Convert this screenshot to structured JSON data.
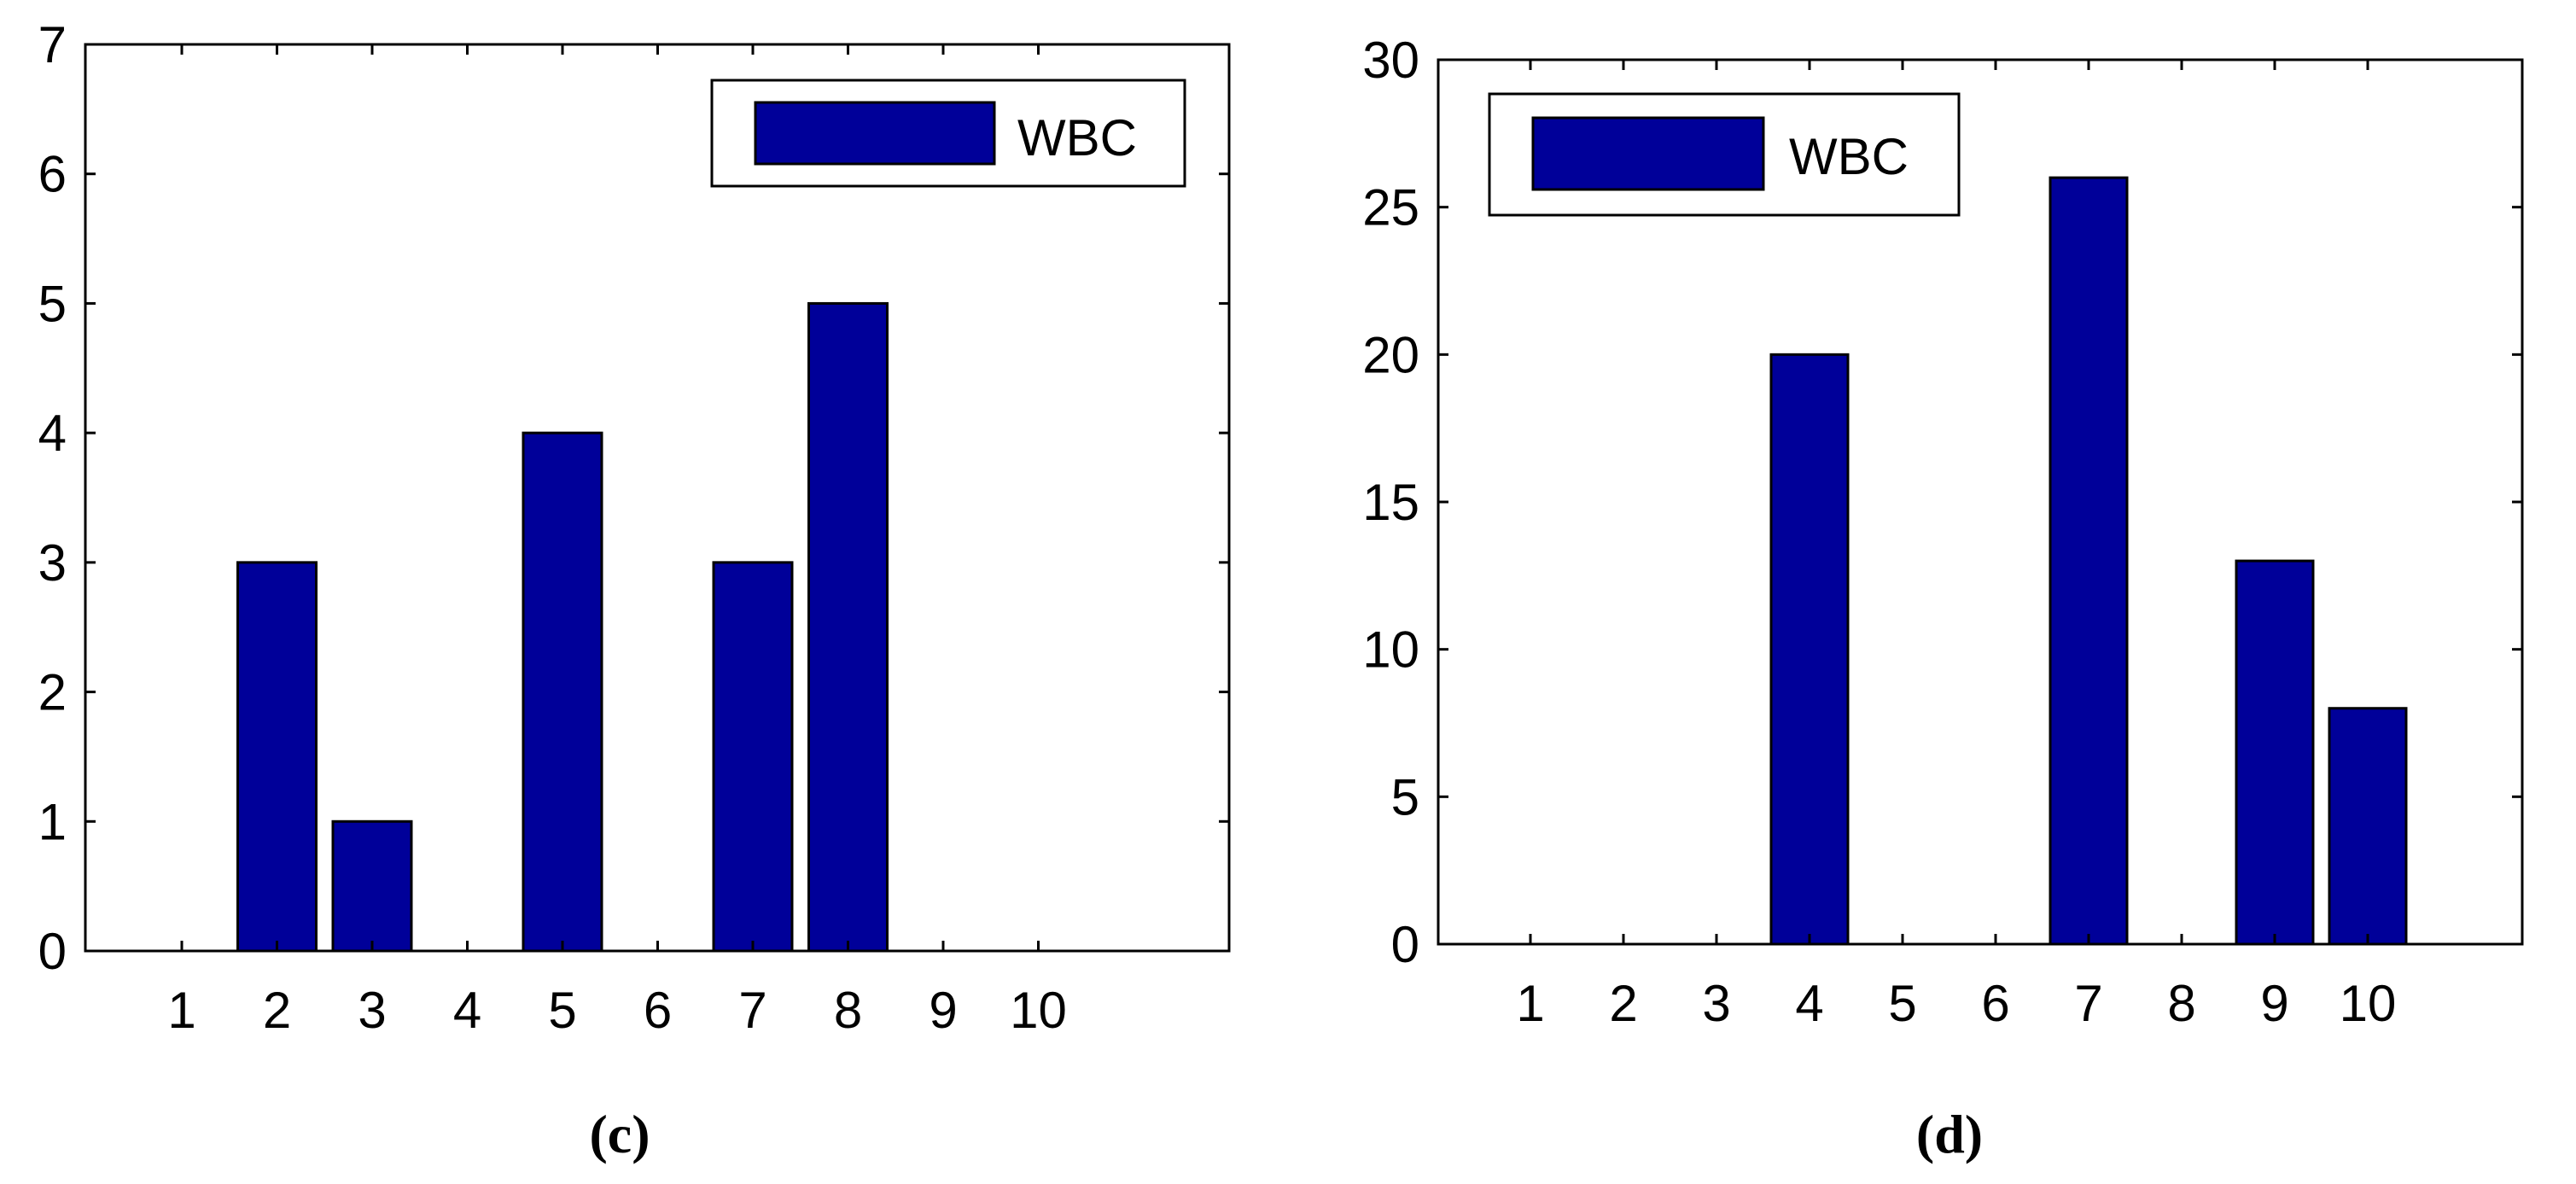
{
  "colors": {
    "bar": "#000099",
    "axis": "#000000",
    "background": "#ffffff"
  },
  "chart_data": [
    {
      "type": "bar",
      "panel_label": "(c)",
      "categories": [
        "1",
        "2",
        "3",
        "4",
        "5",
        "6",
        "7",
        "8",
        "9",
        "10"
      ],
      "series": [
        {
          "name": "WBC",
          "values": [
            0,
            3,
            1,
            0,
            4,
            0,
            3,
            5,
            0,
            0
          ]
        }
      ],
      "xlim": [
        0,
        12
      ],
      "ylim": [
        0,
        7
      ],
      "yticks": [
        0,
        1,
        2,
        3,
        4,
        5,
        6,
        7
      ],
      "legend_position": "top-right",
      "grid": false
    },
    {
      "type": "bar",
      "panel_label": "(d)",
      "categories": [
        "1",
        "2",
        "3",
        "4",
        "5",
        "6",
        "7",
        "8",
        "9",
        "10"
      ],
      "series": [
        {
          "name": "WBC",
          "values": [
            0,
            0,
            0,
            20,
            0,
            0,
            26,
            0,
            13,
            8
          ]
        }
      ],
      "xlim": [
        0,
        11
      ],
      "ylim": [
        0,
        30
      ],
      "yticks": [
        0,
        5,
        10,
        15,
        20,
        25,
        30
      ],
      "legend_position": "top-left",
      "grid": false
    }
  ]
}
